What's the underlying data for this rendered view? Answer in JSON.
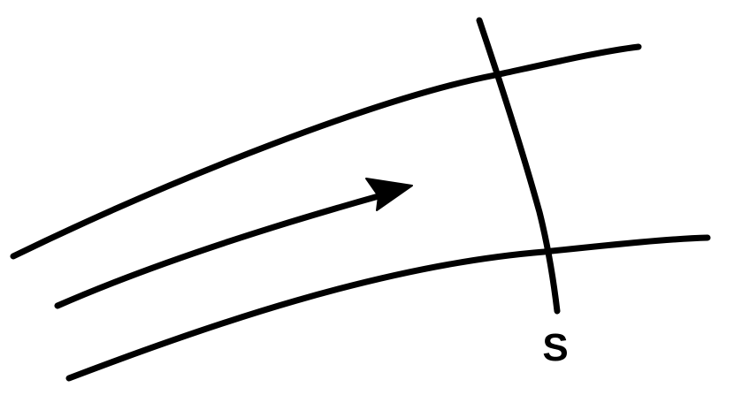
{
  "diagram": {
    "surface_label": "S",
    "elements": [
      "upper-flow-line",
      "middle-flow-line",
      "lower-flow-line",
      "surface-curve",
      "flow-direction-arrow"
    ],
    "colors": {
      "ink": "#000000",
      "background": "#ffffff"
    }
  }
}
